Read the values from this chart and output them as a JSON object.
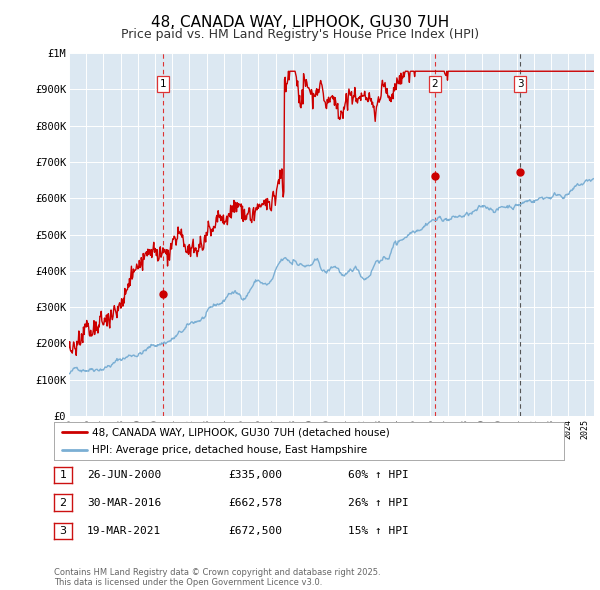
{
  "title": "48, CANADA WAY, LIPHOOK, GU30 7UH",
  "subtitle": "Price paid vs. HM Land Registry's House Price Index (HPI)",
  "title_fontsize": 11,
  "subtitle_fontsize": 9,
  "hpi_color": "#7bafd4",
  "price_color": "#cc0000",
  "vline_color_red": "#dd3333",
  "vline_color_dark": "#555555",
  "background_color": "#ffffff",
  "plot_bg_color": "#dce8f2",
  "grid_color": "#ffffff",
  "ylim": [
    0,
    1000000
  ],
  "yticks": [
    0,
    100000,
    200000,
    300000,
    400000,
    500000,
    600000,
    700000,
    800000,
    900000,
    1000000
  ],
  "ytick_labels": [
    "£0",
    "£100K",
    "£200K",
    "£300K",
    "£400K",
    "£500K",
    "£600K",
    "£700K",
    "£800K",
    "£900K",
    "£1M"
  ],
  "xmin": 1995.0,
  "xmax": 2025.5,
  "sale_dates": [
    2000.48,
    2016.24,
    2021.22
  ],
  "sale_prices": [
    335000,
    662578,
    672500
  ],
  "sale_labels": [
    "1",
    "2",
    "3"
  ],
  "vline_styles": [
    "red_dash",
    "red_dash",
    "dark_dash"
  ],
  "legend_entries": [
    "48, CANADA WAY, LIPHOOK, GU30 7UH (detached house)",
    "HPI: Average price, detached house, East Hampshire"
  ],
  "table_rows": [
    [
      "1",
      "26-JUN-2000",
      "£335,000",
      "60% ↑ HPI"
    ],
    [
      "2",
      "30-MAR-2016",
      "£662,578",
      "26% ↑ HPI"
    ],
    [
      "3",
      "19-MAR-2021",
      "£672,500",
      "15% ↑ HPI"
    ]
  ],
  "footnote": "Contains HM Land Registry data © Crown copyright and database right 2025.\nThis data is licensed under the Open Government Licence v3.0."
}
